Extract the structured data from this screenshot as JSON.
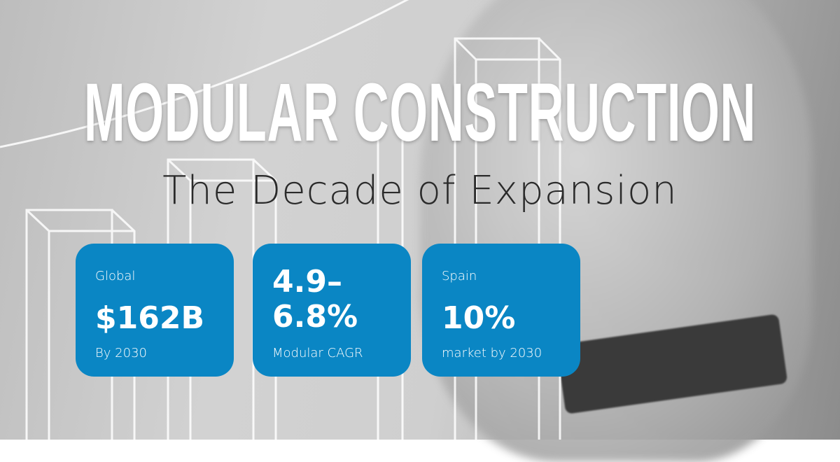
{
  "title": "MODULAR CONSTRUCTION",
  "subtitle": "The Decade of Expansion",
  "accent_color": "#0a86c4",
  "cards": [
    {
      "label": "Global",
      "value": "$162B",
      "note": "By 2030"
    },
    {
      "value_line1": "4.9–",
      "value_line2": "6.8%",
      "note": "Modular CAGR"
    },
    {
      "label": "Spain",
      "value": "10%",
      "note": "market by 2030"
    }
  ]
}
